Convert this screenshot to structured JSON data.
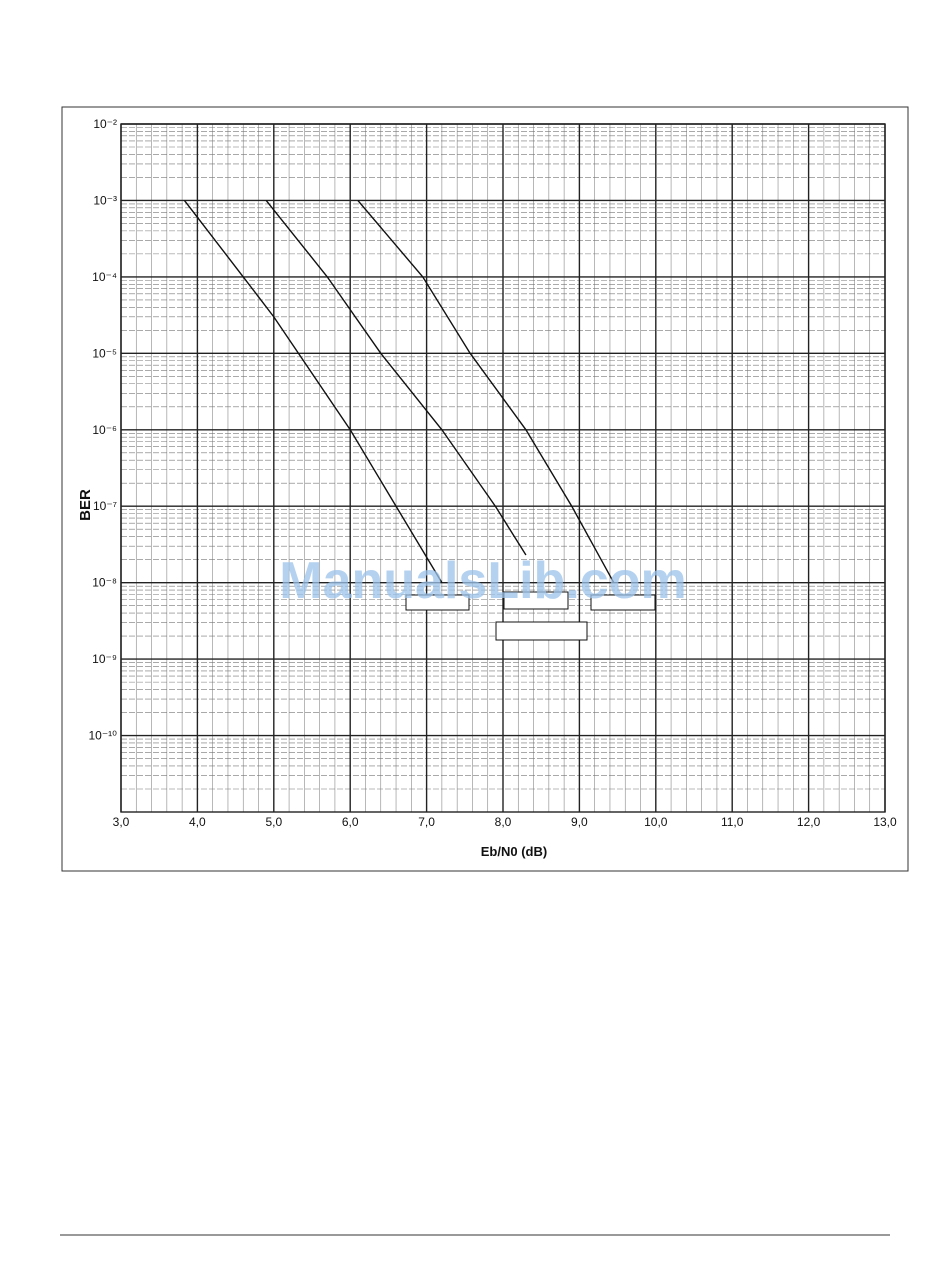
{
  "chart_data": {
    "type": "line",
    "x_label": "Eb/N0 (dB)",
    "y_label": "BER",
    "watermark": "ManualsLib.com",
    "log_y": true,
    "grid": true,
    "xlim": [
      3,
      13
    ],
    "xticks": [
      {
        "value": 3,
        "label": "3,0"
      },
      {
        "value": 4,
        "label": "4,0"
      },
      {
        "value": 5,
        "label": "5,0"
      },
      {
        "value": 6,
        "label": "6,0"
      },
      {
        "value": 7,
        "label": "7,0"
      },
      {
        "value": 8,
        "label": "8,0"
      },
      {
        "value": 9,
        "label": "9,0"
      },
      {
        "value": 10,
        "label": "10,0"
      },
      {
        "value": 11,
        "label": "11,0"
      },
      {
        "value": 12,
        "label": "12,0"
      },
      {
        "value": 13,
        "label": "13,0"
      }
    ],
    "ylim": [
      1e-11,
      0.01
    ],
    "yticks": [
      {
        "value": 0.01,
        "label": "10⁻²"
      },
      {
        "value": 0.001,
        "label": "10⁻³"
      },
      {
        "value": 0.0001,
        "label": "10⁻⁴"
      },
      {
        "value": 1e-05,
        "label": "10⁻⁵"
      },
      {
        "value": 1e-06,
        "label": "10⁻⁶"
      },
      {
        "value": 1e-07,
        "label": "10⁻⁷"
      },
      {
        "value": 1e-08,
        "label": "10⁻⁸"
      },
      {
        "value": 1e-09,
        "label": "10⁻⁹"
      },
      {
        "value": 1e-10,
        "label": "10⁻¹⁰"
      }
    ],
    "series": [
      {
        "color": "#111111",
        "x": [
          3.83,
          4.6,
          5.0,
          6.0,
          7.2
        ],
        "y": [
          0.001,
          0.0001,
          3e-05,
          1e-06,
          1e-08
        ]
      },
      {
        "color": "#111111",
        "x": [
          4.9,
          5.7,
          6.4,
          7.2,
          7.9,
          8.3
        ],
        "y": [
          0.001,
          0.0001,
          1e-05,
          1e-06,
          1e-07,
          2.3e-08
        ]
      },
      {
        "color": "#111111",
        "x": [
          6.1,
          6.95,
          7.57,
          8.3,
          8.9,
          9.45
        ],
        "y": [
          0.001,
          0.0001,
          1e-05,
          1e-06,
          1e-07,
          1e-08
        ]
      }
    ]
  }
}
